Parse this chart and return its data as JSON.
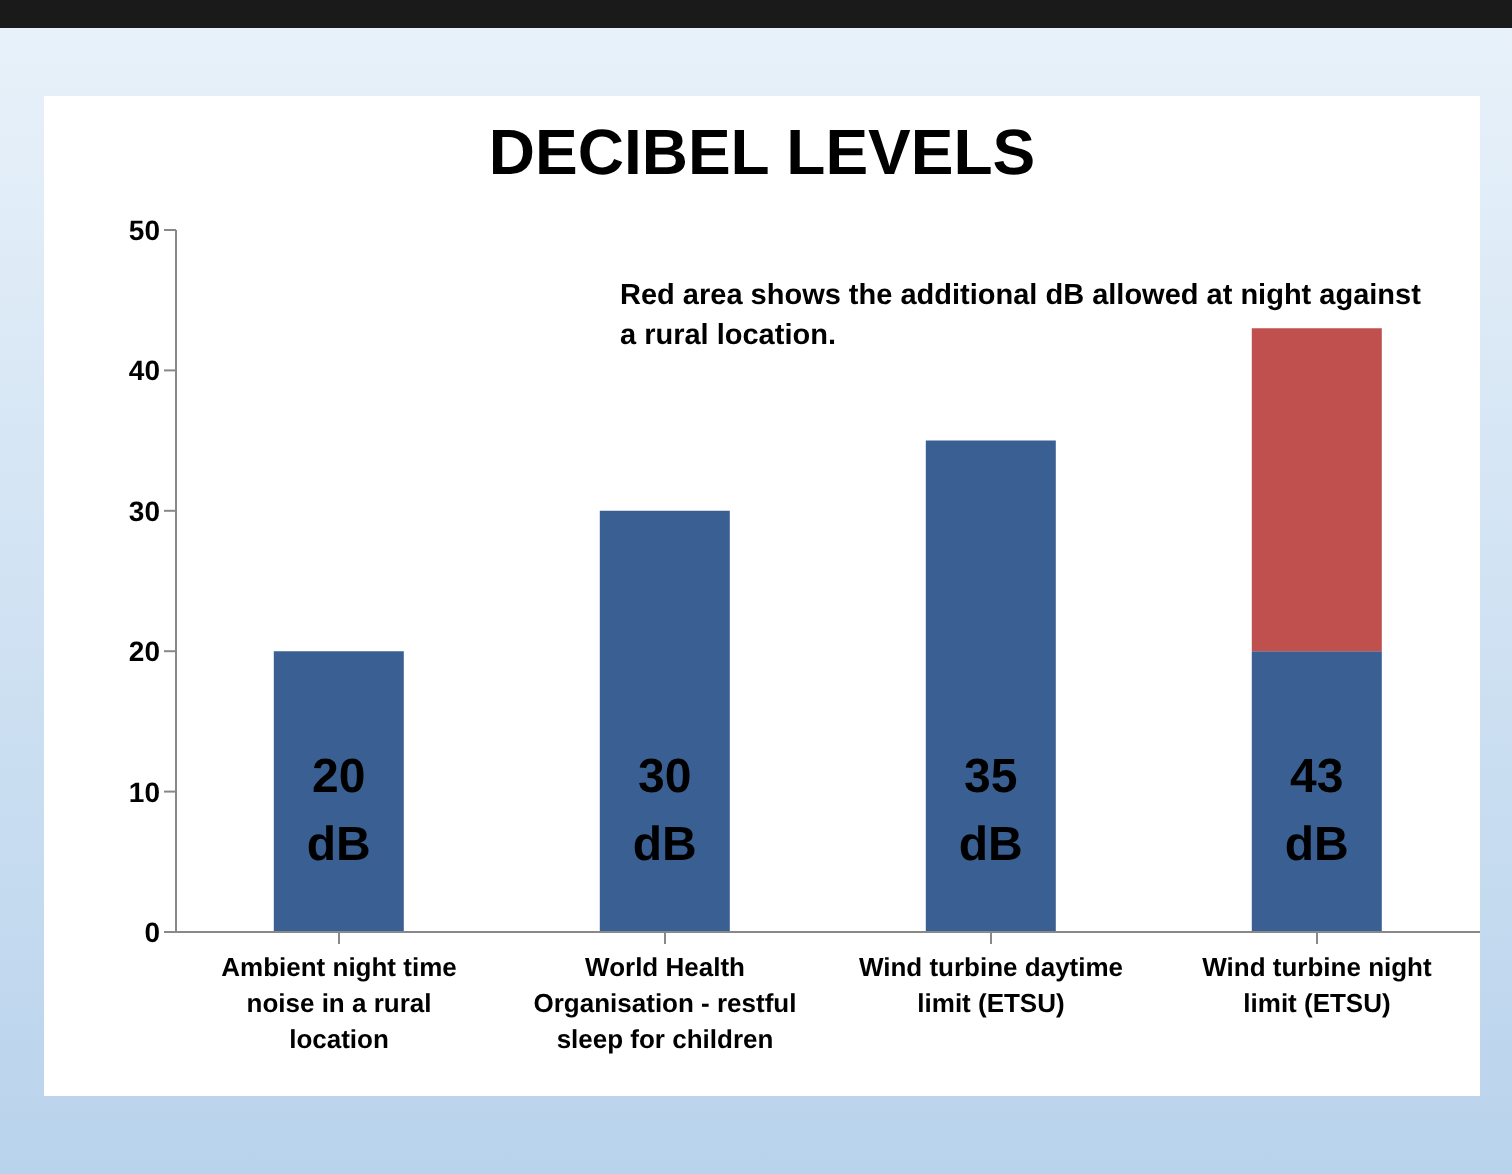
{
  "chart_data": {
    "type": "bar",
    "title": "DECIBEL LEVELS",
    "stacked": true,
    "categories": [
      "Ambient night time noise in a rural location",
      "World Health Organisation - restful sleep for children",
      "Wind turbine daytime limit (ETSU)",
      "Wind turbine night limit (ETSU)"
    ],
    "series": [
      {
        "color": "#395f93",
        "values": [
          20,
          30,
          35,
          20
        ]
      },
      {
        "color": "#c0504d",
        "values": [
          null,
          null,
          null,
          23
        ]
      }
    ],
    "totals": [
      "20 dB",
      "30 dB",
      "35 dB",
      "43 dB"
    ],
    "ylim": [
      0,
      50
    ],
    "yticks": [
      0,
      10,
      20,
      30,
      40,
      50
    ],
    "grid": false,
    "legend": false,
    "annotations": [
      "Red area shows the additional dB allowed at night against a rural location."
    ]
  }
}
